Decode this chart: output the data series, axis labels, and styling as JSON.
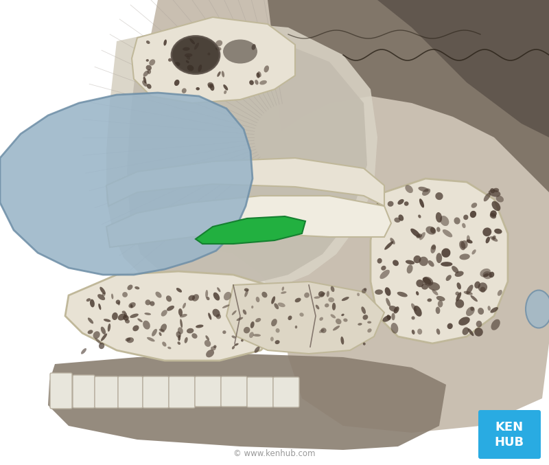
{
  "fig_width": 8.0,
  "fig_height": 6.77,
  "dpi": 100,
  "background_color": "#ffffff",
  "kenhub_box_color": "#29abe2",
  "kenhub_text": "KEN\nHUB",
  "kenhub_text_color": "#ffffff",
  "copyright_text": "© www.kenhub.com",
  "copyright_color": "#999999",
  "blue_cartilage_color": "#9ab5c8",
  "blue_cartilage_edge": "#7090a8",
  "green_highlight_color": "#22b040",
  "green_edge": "#158030",
  "bone_cream": "#e8e2d4",
  "bone_cream2": "#ddd6c5",
  "bone_edge": "#c0b89a",
  "bone_white": "#f0ece0",
  "skull_brown_dark": "#6b5e52",
  "skull_brown_mid": "#a09080",
  "skull_brown_light": "#c8b8a8",
  "skull_tan": "#c8bfae",
  "skull_light": "#ddd5c5",
  "spongy_bg": "#d8d0be",
  "spongy_hole": "#4a3a30",
  "tissue_gray": "#b8b0a2",
  "tissue_light": "#ccc4b4",
  "teeth_white": "#e8e6dc",
  "teeth_edge": "#b8b0a0",
  "jaw_brown": "#8a7a6a",
  "ear_blue": "#a0b8c8",
  "suture_line": "#2a2218"
}
